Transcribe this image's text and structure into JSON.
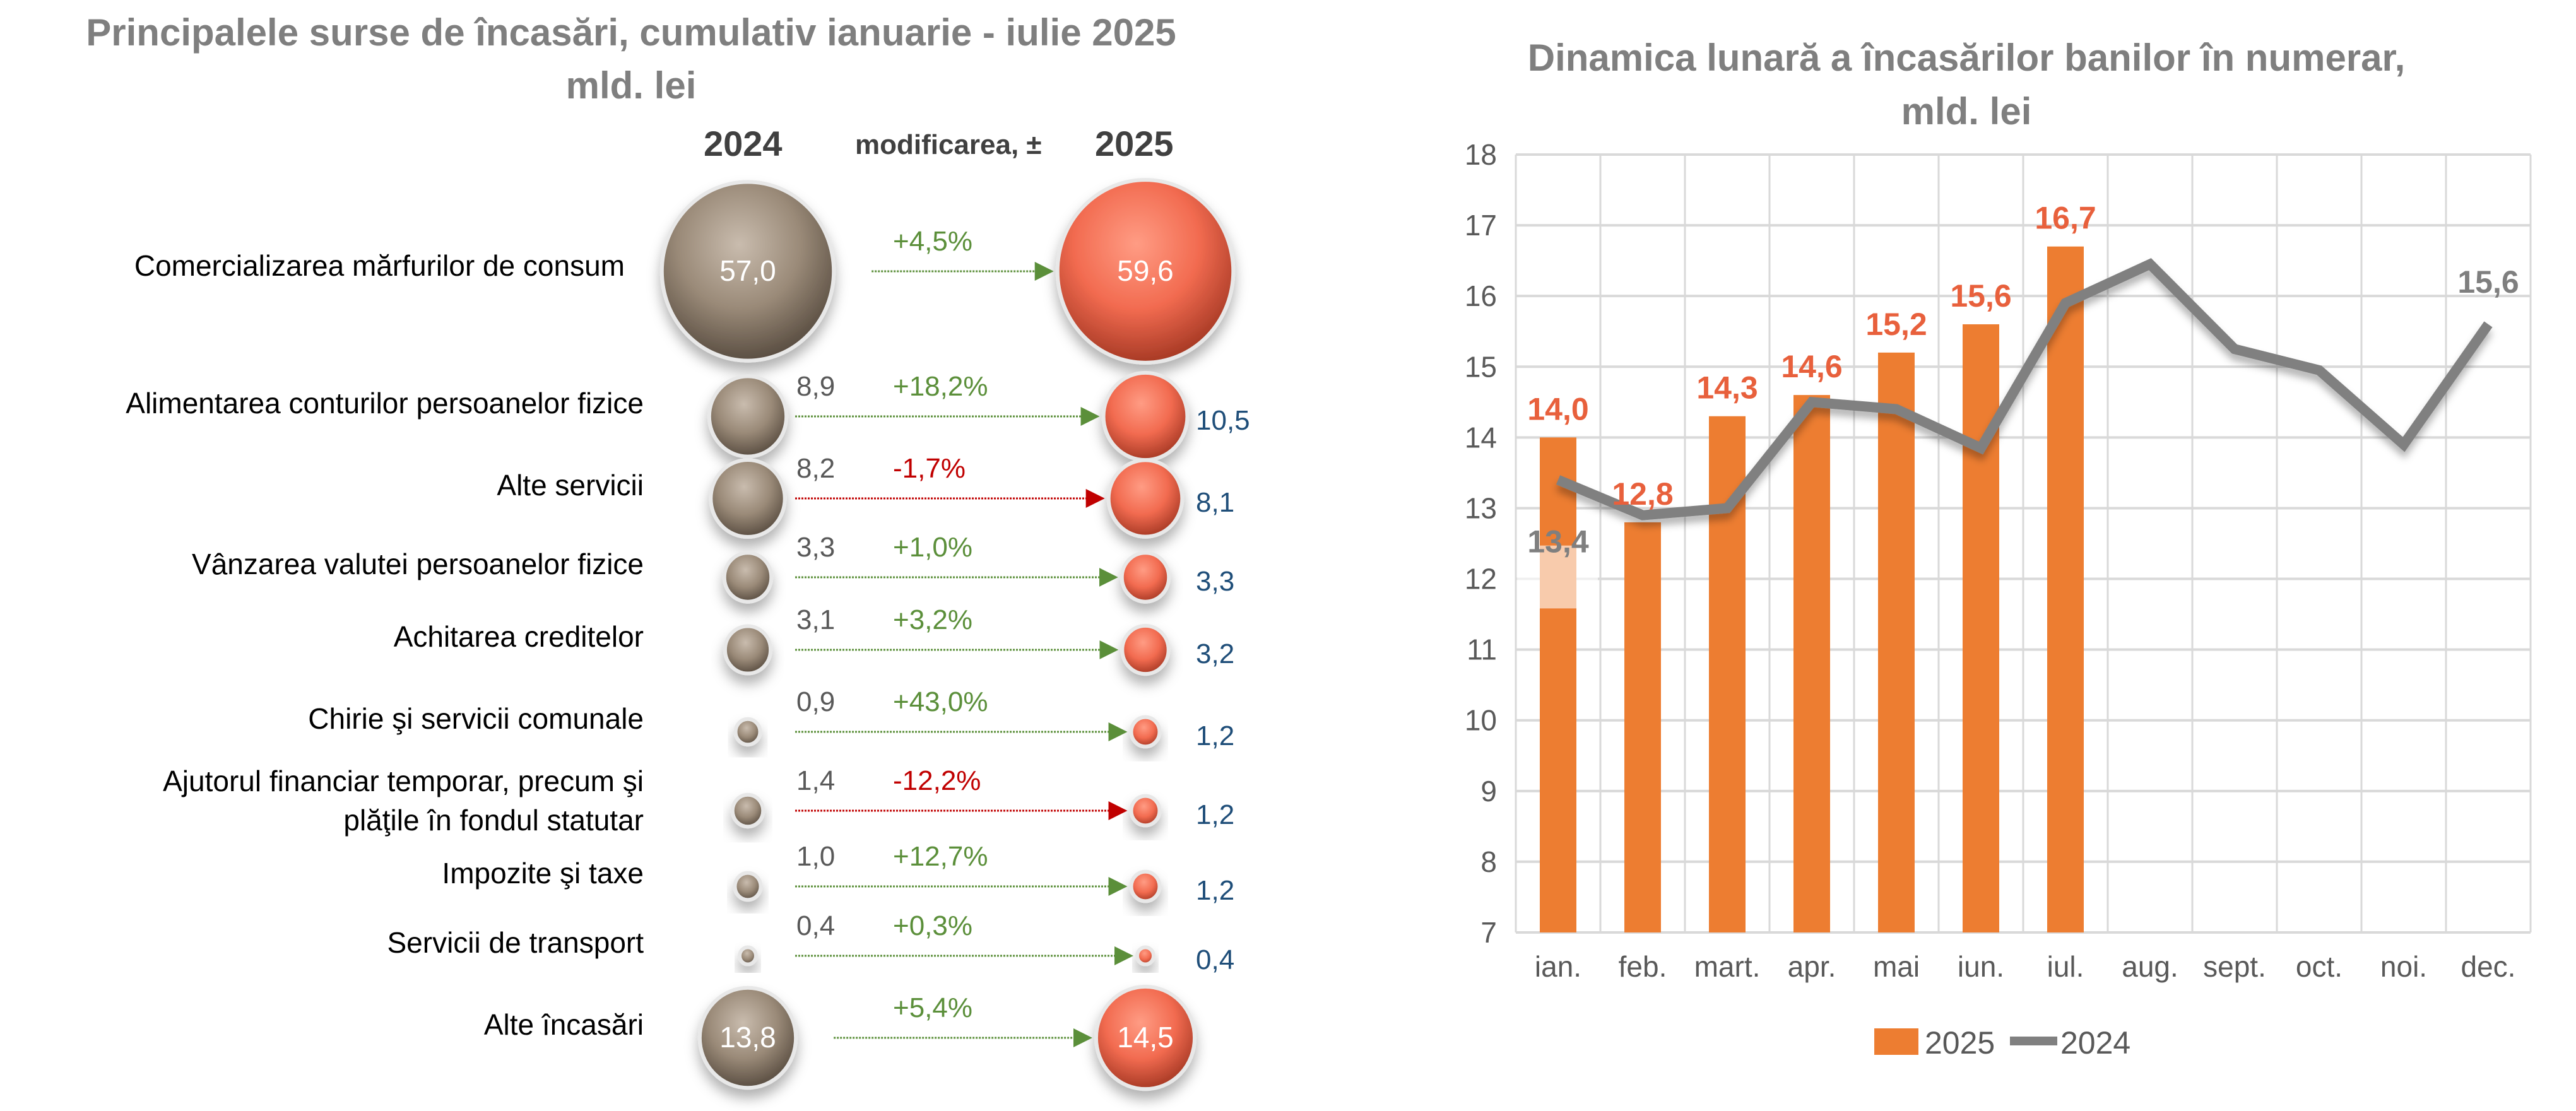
{
  "chart_data": [
    {
      "type": "bubble-comparison",
      "title": "Principalele surse de încasări, cumulativ ianuarie - iulie 2025",
      "subtitle": "mld. lei",
      "column_headers": {
        "left": "2024",
        "middle": "modificarea, ±",
        "right": "2025"
      },
      "rows": [
        {
          "label": "Comercializarea mărfurilor de consum",
          "v2024": "57,0",
          "v2025": "59,6",
          "change": "+4,5%",
          "dir": "up",
          "n2024": 57.0,
          "n2025": 59.6
        },
        {
          "label": "Alimentarea conturilor persoanelor fizice",
          "v2024": "8,9",
          "v2025": "10,5",
          "change": "+18,2%",
          "dir": "up",
          "n2024": 8.9,
          "n2025": 10.5
        },
        {
          "label": "Alte servicii",
          "v2024": "8,2",
          "v2025": "8,1",
          "change": "-1,7%",
          "dir": "down",
          "n2024": 8.2,
          "n2025": 8.1
        },
        {
          "label": "Vânzarea valutei persoanelor fizice",
          "v2024": "3,3",
          "v2025": "3,3",
          "change": "+1,0%",
          "dir": "up",
          "n2024": 3.3,
          "n2025": 3.3
        },
        {
          "label": "Achitarea creditelor",
          "v2024": "3,1",
          "v2025": "3,2",
          "change": "+3,2%",
          "dir": "up",
          "n2024": 3.1,
          "n2025": 3.2
        },
        {
          "label": "Chirie şi servicii comunale",
          "v2024": "0,9",
          "v2025": "1,2",
          "change": "+43,0%",
          "dir": "up",
          "n2024": 0.9,
          "n2025": 1.2
        },
        {
          "label": "Ajutorul financiar temporar, precum şi plăţile în fondul statutar",
          "label_line1": "Ajutorul financiar temporar, precum şi",
          "label_line2": "plăţile în fondul statutar",
          "v2024": "1,4",
          "v2025": "1,2",
          "change": "-12,2%",
          "dir": "down",
          "n2024": 1.4,
          "n2025": 1.2
        },
        {
          "label": "Impozite şi taxe",
          "v2024": "1,0",
          "v2025": "1,2",
          "change": "+12,7%",
          "dir": "up",
          "n2024": 1.0,
          "n2025": 1.2
        },
        {
          "label": "Servicii de transport",
          "v2024": "0,4",
          "v2025": "0,4",
          "change": "+0,3%",
          "dir": "up",
          "n2024": 0.4,
          "n2025": 0.4
        },
        {
          "label": "Alte încasări",
          "v2024": "13,8",
          "v2025": "14,5",
          "change": "+5,4%",
          "dir": "up",
          "n2024": 13.8,
          "n2025": 14.5
        }
      ],
      "colors": {
        "bubble2024": "#9a8a78",
        "bubble2025": "#f26b50",
        "up": "#5b8f3a",
        "down": "#c00000",
        "value2025": "#1f4e79"
      }
    },
    {
      "type": "bar+line",
      "title": "Dinamica lunară a încasărilor banilor în numerar,",
      "subtitle": "mld. lei",
      "categories": [
        "ian.",
        "feb.",
        "mart.",
        "apr.",
        "mai",
        "iun.",
        "iul.",
        "aug.",
        "sept.",
        "oct.",
        "noi.",
        "dec."
      ],
      "series": [
        {
          "name": "2025",
          "type": "bar",
          "color": "#ed7d31",
          "values": [
            14.0,
            12.8,
            14.3,
            14.6,
            15.2,
            15.6,
            16.7,
            null,
            null,
            null,
            null,
            null
          ],
          "labels": [
            "14,0",
            "12,8",
            "14,3",
            "14,6",
            "15,2",
            "15,6",
            "16,7",
            "",
            "",
            "",
            "",
            ""
          ]
        },
        {
          "name": "2024",
          "type": "line",
          "color": "#808080",
          "values": [
            13.4,
            12.9,
            13.0,
            14.5,
            14.4,
            13.85,
            15.9,
            16.45,
            15.25,
            14.95,
            13.9,
            15.6
          ],
          "labels": [
            "13,4",
            "",
            "",
            "",
            "",
            "",
            "",
            "",
            "",
            "",
            "",
            "15,6"
          ]
        }
      ],
      "yticks": [
        "7",
        "8",
        "9",
        "10",
        "11",
        "12",
        "13",
        "14",
        "15",
        "16",
        "17",
        "18"
      ],
      "ylim": [
        7,
        18
      ],
      "grid": true,
      "legend": "bottom",
      "xlabel": "",
      "ylabel": ""
    }
  ]
}
